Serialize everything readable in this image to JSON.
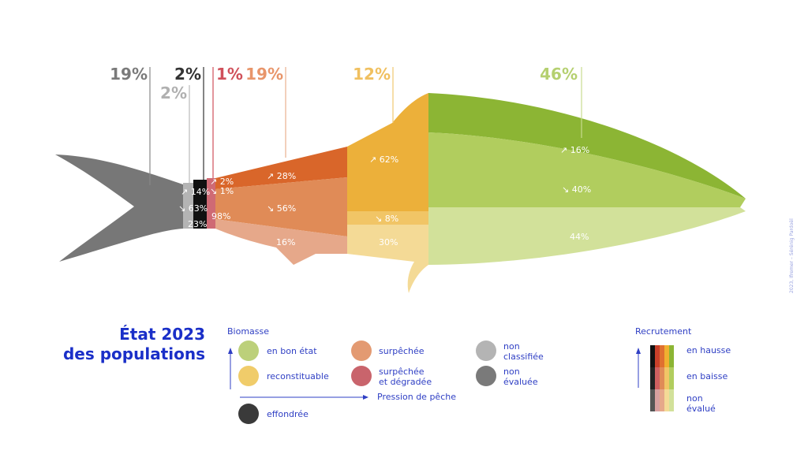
{
  "title": {
    "line1": "État 2023",
    "line2": "des populations"
  },
  "credit": "2023, Ifremer – Sérénig Pardoël",
  "top_labels": [
    {
      "text": "19%",
      "color": "#7a7a7a"
    },
    {
      "text": "2%",
      "color": "#b0b0b0"
    },
    {
      "text": "2%",
      "color": "#333333"
    },
    {
      "text": "1%",
      "color": "#d0505a"
    },
    {
      "text": "19%",
      "color": "#e8956a"
    },
    {
      "text": "12%",
      "color": "#f0c060"
    },
    {
      "text": "46%",
      "color": "#b5d070"
    }
  ],
  "segments": {
    "grey_light": {
      "up": "↗ 14%",
      "down": "↘ 63%",
      "na": "23%"
    },
    "red": {
      "up": "↗ 2%",
      "down": "↘ 1%",
      "na": "98%"
    },
    "orange": {
      "up": "↗ 28%",
      "down": "↘ 56%",
      "na": "16%"
    },
    "yellow": {
      "up": "↗ 62%",
      "down": "↘ 8%",
      "na": "30%"
    },
    "green": {
      "up": "↗ 16%",
      "down": "↘ 40%",
      "na": "44%"
    }
  },
  "legend": {
    "biomasse": "Biomasse",
    "pression": "Pression de pêche",
    "items": [
      {
        "label": "en bon état",
        "color": "#bcd07a"
      },
      {
        "label": "reconstituable",
        "color": "#f0cc6a"
      },
      {
        "label": "surpêchée",
        "color": "#e39a72"
      },
      {
        "label1": "surpêchée",
        "label2": "et dégradée",
        "color": "#c9646c"
      },
      {
        "label1": "non",
        "label2": "classifiée",
        "color": "#b4b4b4"
      },
      {
        "label1": "non",
        "label2": "évaluée",
        "color": "#7a7a7a"
      },
      {
        "label": "effondrée",
        "color": "#3a3a3a"
      }
    ]
  },
  "recrutement": {
    "title": "Recrutement",
    "up": "en hausse",
    "down": "en baisse",
    "na1": "non",
    "na2": "évalué"
  },
  "colors": {
    "accent": "#2f3fc4"
  }
}
